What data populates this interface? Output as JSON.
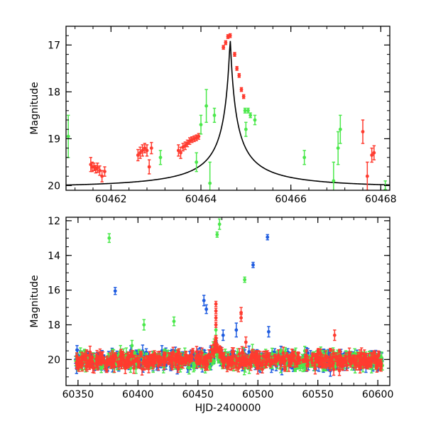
{
  "chart_data": [
    {
      "type": "scatter",
      "title": "",
      "xlabel": "",
      "ylabel": "Magnitude",
      "xlim": [
        60461.0,
        60468.2
      ],
      "ylim": [
        20.1,
        16.6
      ],
      "y_inverted": true,
      "x_ticks": [
        60462,
        60464,
        60466,
        60468
      ],
      "y_ticks": [
        17,
        18,
        19,
        20
      ],
      "x_tick_labels": [
        "60462",
        "60464",
        "60466",
        "60468"
      ],
      "y_tick_labels": [
        "17",
        "18",
        "19",
        "20"
      ],
      "grid": false,
      "series": [
        {
          "color": "#ff3b2f",
          "points": [
            {
              "x": 61.55,
              "y": 19.55,
              "err": 0.15
            },
            {
              "x": 61.58,
              "y": 19.6,
              "err": 0.1
            },
            {
              "x": 61.62,
              "y": 19.6,
              "err": 0.08
            },
            {
              "x": 61.66,
              "y": 19.65,
              "err": 0.08
            },
            {
              "x": 61.7,
              "y": 19.62,
              "err": 0.1
            },
            {
              "x": 61.75,
              "y": 19.68,
              "err": 0.1
            },
            {
              "x": 61.8,
              "y": 19.8,
              "err": 0.12
            },
            {
              "x": 61.86,
              "y": 19.7,
              "err": 0.1
            },
            {
              "x": 62.6,
              "y": 19.35,
              "err": 0.12
            },
            {
              "x": 62.65,
              "y": 19.3,
              "err": 0.12
            },
            {
              "x": 62.7,
              "y": 19.25,
              "err": 0.12
            },
            {
              "x": 62.75,
              "y": 19.2,
              "err": 0.1
            },
            {
              "x": 62.8,
              "y": 19.25,
              "err": 0.12
            },
            {
              "x": 62.85,
              "y": 19.6,
              "err": 0.15
            },
            {
              "x": 62.9,
              "y": 19.2,
              "err": 0.12
            },
            {
              "x": 63.5,
              "y": 19.25,
              "err": 0.12
            },
            {
              "x": 63.55,
              "y": 19.3,
              "err": 0.12
            },
            {
              "x": 63.6,
              "y": 19.18,
              "err": 0.08
            },
            {
              "x": 63.65,
              "y": 19.15,
              "err": 0.08
            },
            {
              "x": 63.7,
              "y": 19.1,
              "err": 0.07
            },
            {
              "x": 63.75,
              "y": 19.05,
              "err": 0.07
            },
            {
              "x": 63.8,
              "y": 19.02,
              "err": 0.06
            },
            {
              "x": 63.85,
              "y": 19.0,
              "err": 0.06
            },
            {
              "x": 63.9,
              "y": 18.98,
              "err": 0.06
            },
            {
              "x": 63.95,
              "y": 18.95,
              "err": 0.06
            },
            {
              "x": 64.5,
              "y": 17.05,
              "err": 0.04
            },
            {
              "x": 64.55,
              "y": 16.95,
              "err": 0.04
            },
            {
              "x": 64.6,
              "y": 16.82,
              "err": 0.04
            },
            {
              "x": 64.65,
              "y": 16.8,
              "err": 0.04
            },
            {
              "x": 64.75,
              "y": 17.2,
              "err": 0.04
            },
            {
              "x": 64.8,
              "y": 17.5,
              "err": 0.04
            },
            {
              "x": 64.85,
              "y": 17.65,
              "err": 0.04
            },
            {
              "x": 64.9,
              "y": 17.95,
              "err": 0.04
            },
            {
              "x": 64.95,
              "y": 18.1,
              "err": 0.04
            },
            {
              "x": 67.6,
              "y": 18.85,
              "err": 0.25
            },
            {
              "x": 67.7,
              "y": 19.8,
              "err": 0.3
            },
            {
              "x": 67.8,
              "y": 19.35,
              "err": 0.15
            },
            {
              "x": 67.85,
              "y": 19.3,
              "err": 0.15
            }
          ]
        },
        {
          "color": "#4be84b",
          "points": [
            {
              "x": 61.05,
              "y": 18.95,
              "err": 0.45
            },
            {
              "x": 63.1,
              "y": 19.4,
              "err": 0.15
            },
            {
              "x": 63.9,
              "y": 19.5,
              "err": 0.2
            },
            {
              "x": 64.0,
              "y": 18.7,
              "err": 0.2
            },
            {
              "x": 64.12,
              "y": 18.3,
              "err": 0.35
            },
            {
              "x": 64.2,
              "y": 19.95,
              "err": 0.45
            },
            {
              "x": 64.3,
              "y": 18.5,
              "err": 0.15
            },
            {
              "x": 64.98,
              "y": 18.4,
              "err": 0.05
            },
            {
              "x": 65.0,
              "y": 18.8,
              "err": 0.15
            },
            {
              "x": 65.05,
              "y": 18.4,
              "err": 0.05
            },
            {
              "x": 65.1,
              "y": 18.5,
              "err": 0.05
            },
            {
              "x": 65.2,
              "y": 18.6,
              "err": 0.1
            },
            {
              "x": 66.3,
              "y": 19.4,
              "err": 0.15
            },
            {
              "x": 66.95,
              "y": 19.9,
              "err": 0.4
            },
            {
              "x": 67.05,
              "y": 19.2,
              "err": 0.35
            },
            {
              "x": 67.1,
              "y": 18.8,
              "err": 0.3
            },
            {
              "x": 68.1,
              "y": 20.1,
              "err": 0.2
            }
          ]
        }
      ],
      "model_curve": {
        "color": "#000000",
        "peak_x": 60464.65,
        "peak_y": 16.82,
        "baseline_y": 20.05
      }
    },
    {
      "type": "scatter",
      "title": "",
      "xlabel": "HJD-2400000",
      "ylabel": "Magnitude",
      "xlim": [
        60340,
        60610
      ],
      "ylim": [
        21.5,
        11.8
      ],
      "y_inverted": true,
      "x_ticks": [
        60350,
        60400,
        60450,
        60500,
        60550,
        60600
      ],
      "y_ticks": [
        12,
        14,
        16,
        18,
        20
      ],
      "x_tick_labels": [
        "60350",
        "60400",
        "60450",
        "60500",
        "60550",
        "60600"
      ],
      "y_tick_labels": [
        "12",
        "14",
        "16",
        "18",
        "20"
      ],
      "grid": false,
      "series": [
        {
          "color": "#1f5ce0",
          "outliers": [
            {
              "x": 60381,
              "y": 16.05,
              "err": 0.2
            },
            {
              "x": 60455,
              "y": 16.6,
              "err": 0.3
            },
            {
              "x": 60457,
              "y": 17.1,
              "err": 0.25
            },
            {
              "x": 60471,
              "y": 18.6,
              "err": 0.3
            },
            {
              "x": 60482,
              "y": 18.3,
              "err": 0.4
            },
            {
              "x": 60496,
              "y": 14.55,
              "err": 0.15
            },
            {
              "x": 60508,
              "y": 12.95,
              "err": 0.15
            },
            {
              "x": 60509,
              "y": 18.4,
              "err": 0.3
            },
            {
              "x": 60420,
              "y": 19.5,
              "err": 0.3
            }
          ]
        },
        {
          "color": "#4be84b",
          "outliers": [
            {
              "x": 60376,
              "y": 13.0,
              "err": 0.25
            },
            {
              "x": 60405,
              "y": 18.0,
              "err": 0.3
            },
            {
              "x": 60430,
              "y": 17.8,
              "err": 0.25
            },
            {
              "x": 60466,
              "y": 12.8,
              "err": 0.15
            },
            {
              "x": 60468,
              "y": 12.2,
              "err": 0.3
            },
            {
              "x": 60489,
              "y": 15.4,
              "err": 0.15
            },
            {
              "x": 60465,
              "y": 18.3,
              "err": 0.3
            },
            {
              "x": 60395,
              "y": 19.2,
              "err": 0.3
            }
          ]
        },
        {
          "color": "#ff3b2f",
          "outliers": [
            {
              "x": 60465,
              "y": 16.8,
              "err": 0.15
            },
            {
              "x": 60465,
              "y": 17.2,
              "err": 0.15
            },
            {
              "x": 60465,
              "y": 17.6,
              "err": 0.15
            },
            {
              "x": 60465,
              "y": 18.0,
              "err": 0.15
            },
            {
              "x": 60486,
              "y": 17.3,
              "err": 0.3
            },
            {
              "x": 60486,
              "y": 17.6,
              "err": 0.2
            },
            {
              "x": 60564,
              "y": 18.6,
              "err": 0.3
            },
            {
              "x": 60490,
              "y": 19.0,
              "err": 0.3
            }
          ]
        }
      ]
    }
  ]
}
